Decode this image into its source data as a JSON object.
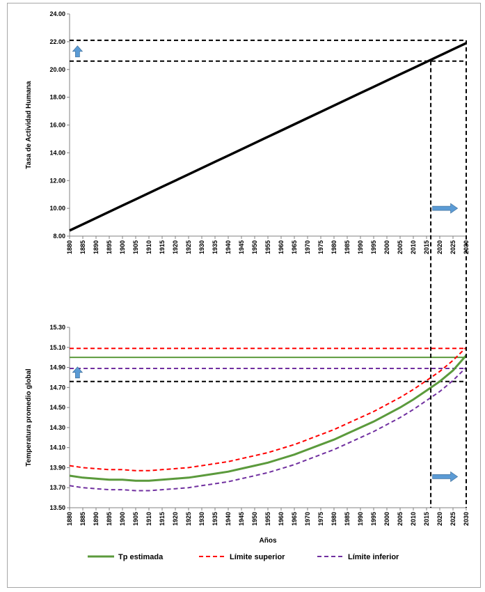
{
  "chart_data": [
    {
      "type": "line",
      "title": "",
      "xlabel": "",
      "ylabel": "Tasa de Actividad Humana",
      "x": [
        1880,
        1885,
        1890,
        1895,
        1900,
        1905,
        1910,
        1915,
        1920,
        1925,
        1930,
        1935,
        1940,
        1945,
        1950,
        1955,
        1960,
        1965,
        1970,
        1975,
        1980,
        1985,
        1990,
        1995,
        2000,
        2005,
        2010,
        2015,
        2020,
        2025,
        2030
      ],
      "x_tick_labels": [
        "1880",
        "1885",
        "1890",
        "1895",
        "1900",
        "1905",
        "1910",
        "1915",
        "1920",
        "1925",
        "1930",
        "1935",
        "1940",
        "1945",
        "1950",
        "1955",
        "1960",
        "1965",
        "1970",
        "1975",
        "1980",
        "1985",
        "1990",
        "1995",
        "2000",
        "2005",
        "2010",
        "2015",
        "2020",
        "2025",
        "2030"
      ],
      "ylim": [
        8.0,
        24.0
      ],
      "y_tick_labels": [
        "8.00",
        "10.00",
        "12.00",
        "14.00",
        "16.00",
        "18.00",
        "20.00",
        "22.00",
        "24.00"
      ],
      "series": [
        {
          "values": [
            8.4,
            8.85,
            9.3,
            9.75,
            10.2,
            10.65,
            11.1,
            11.55,
            12.0,
            12.45,
            12.9,
            13.35,
            13.8,
            14.25,
            14.7,
            15.15,
            15.6,
            16.05,
            16.5,
            16.95,
            17.4,
            17.85,
            18.3,
            18.75,
            19.2,
            19.65,
            20.1,
            20.55,
            21.0,
            21.45,
            21.9
          ],
          "color": "#000000"
        }
      ],
      "reference_lines": {
        "h": [
          22.1,
          20.6
        ],
        "v": [
          2016.6,
          2030
        ]
      },
      "arrows": [
        {
          "dir": "up",
          "x": 1883,
          "y": 21.3
        },
        {
          "dir": "right",
          "x": 2022,
          "y": 10.0
        }
      ],
      "grid": false,
      "legend": "none"
    },
    {
      "type": "line",
      "title": "",
      "xlabel": "Años",
      "ylabel": "Temperatura promedio global",
      "x": [
        1880,
        1885,
        1890,
        1895,
        1900,
        1905,
        1910,
        1915,
        1920,
        1925,
        1930,
        1935,
        1940,
        1945,
        1950,
        1955,
        1960,
        1965,
        1970,
        1975,
        1980,
        1985,
        1990,
        1995,
        2000,
        2005,
        2010,
        2015,
        2020,
        2025,
        2030
      ],
      "x_tick_labels": [
        "1880",
        "1885",
        "1890",
        "1895",
        "1900",
        "1905",
        "1910",
        "1915",
        "1920",
        "1925",
        "1930",
        "1935",
        "1940",
        "1945",
        "1950",
        "1955",
        "1960",
        "1965",
        "1970",
        "1975",
        "1980",
        "1985",
        "1990",
        "1995",
        "2000",
        "2005",
        "2010",
        "2015",
        "2020",
        "2025",
        "2030"
      ],
      "ylim": [
        13.5,
        15.3
      ],
      "y_tick_labels": [
        "13.50",
        "13.70",
        "13.90",
        "14.10",
        "14.30",
        "14.50",
        "14.70",
        "14.90",
        "15.10",
        "15.30"
      ],
      "series": [
        {
          "name": "Tp estimada",
          "style": "solid",
          "color": "#5b9a3c",
          "values": [
            13.82,
            13.8,
            13.79,
            13.78,
            13.78,
            13.77,
            13.77,
            13.78,
            13.79,
            13.8,
            13.82,
            13.84,
            13.86,
            13.89,
            13.92,
            13.95,
            13.99,
            14.03,
            14.08,
            14.13,
            14.18,
            14.24,
            14.3,
            14.36,
            14.43,
            14.5,
            14.58,
            14.67,
            14.76,
            14.87,
            15.02
          ]
        },
        {
          "name": "Límite superior",
          "style": "dashed",
          "color": "#ff0000",
          "values": [
            13.92,
            13.9,
            13.89,
            13.88,
            13.88,
            13.87,
            13.87,
            13.88,
            13.89,
            13.9,
            13.92,
            13.94,
            13.96,
            13.99,
            14.02,
            14.05,
            14.09,
            14.13,
            14.18,
            14.23,
            14.28,
            14.34,
            14.4,
            14.46,
            14.53,
            14.6,
            14.68,
            14.77,
            14.86,
            14.97,
            15.1
          ]
        },
        {
          "name": "Límite inferior",
          "style": "dashed",
          "color": "#7030a0",
          "values": [
            13.72,
            13.7,
            13.69,
            13.68,
            13.68,
            13.67,
            13.67,
            13.68,
            13.69,
            13.7,
            13.72,
            13.74,
            13.76,
            13.79,
            13.82,
            13.85,
            13.89,
            13.93,
            13.98,
            14.03,
            14.08,
            14.14,
            14.2,
            14.26,
            14.33,
            14.4,
            14.48,
            14.57,
            14.66,
            14.77,
            14.9
          ]
        }
      ],
      "reference_lines": {
        "h": [
          {
            "value": 15.0,
            "color": "#5b9a3c",
            "style": "solid"
          },
          {
            "value": 15.09,
            "color": "#ff0000",
            "style": "dashed"
          },
          {
            "value": 14.89,
            "color": "#7030a0",
            "style": "dashed"
          },
          {
            "value": 14.76,
            "color": "#000000",
            "style": "dashed"
          }
        ],
        "v": [
          2016.6,
          2030
        ]
      },
      "arrows": [
        {
          "dir": "up",
          "x": 1883,
          "y": 14.85
        },
        {
          "dir": "right",
          "x": 2022,
          "y": 13.81
        }
      ],
      "grid": false,
      "legend": "bottom"
    }
  ]
}
